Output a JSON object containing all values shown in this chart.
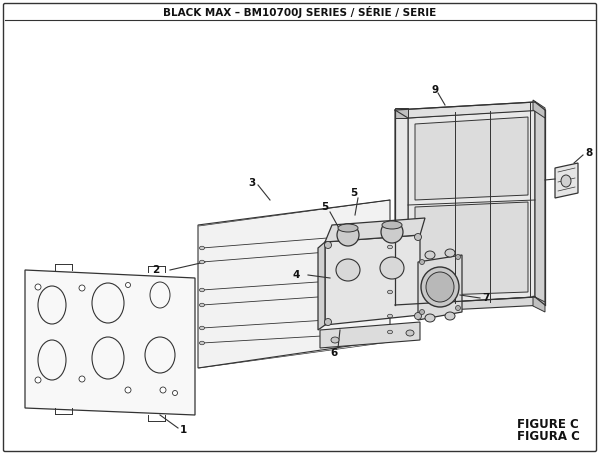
{
  "title": "BLACK MAX – BM10700J SERIES / SÉRIE / SERIE",
  "figure_label": "FIGURE C",
  "figura_label": "FIGURA C",
  "bg_color": "#ffffff",
  "line_color": "#333333",
  "text_color": "#111111",
  "title_fontsize": 7.5,
  "fig_label_fontsize": 8.5
}
